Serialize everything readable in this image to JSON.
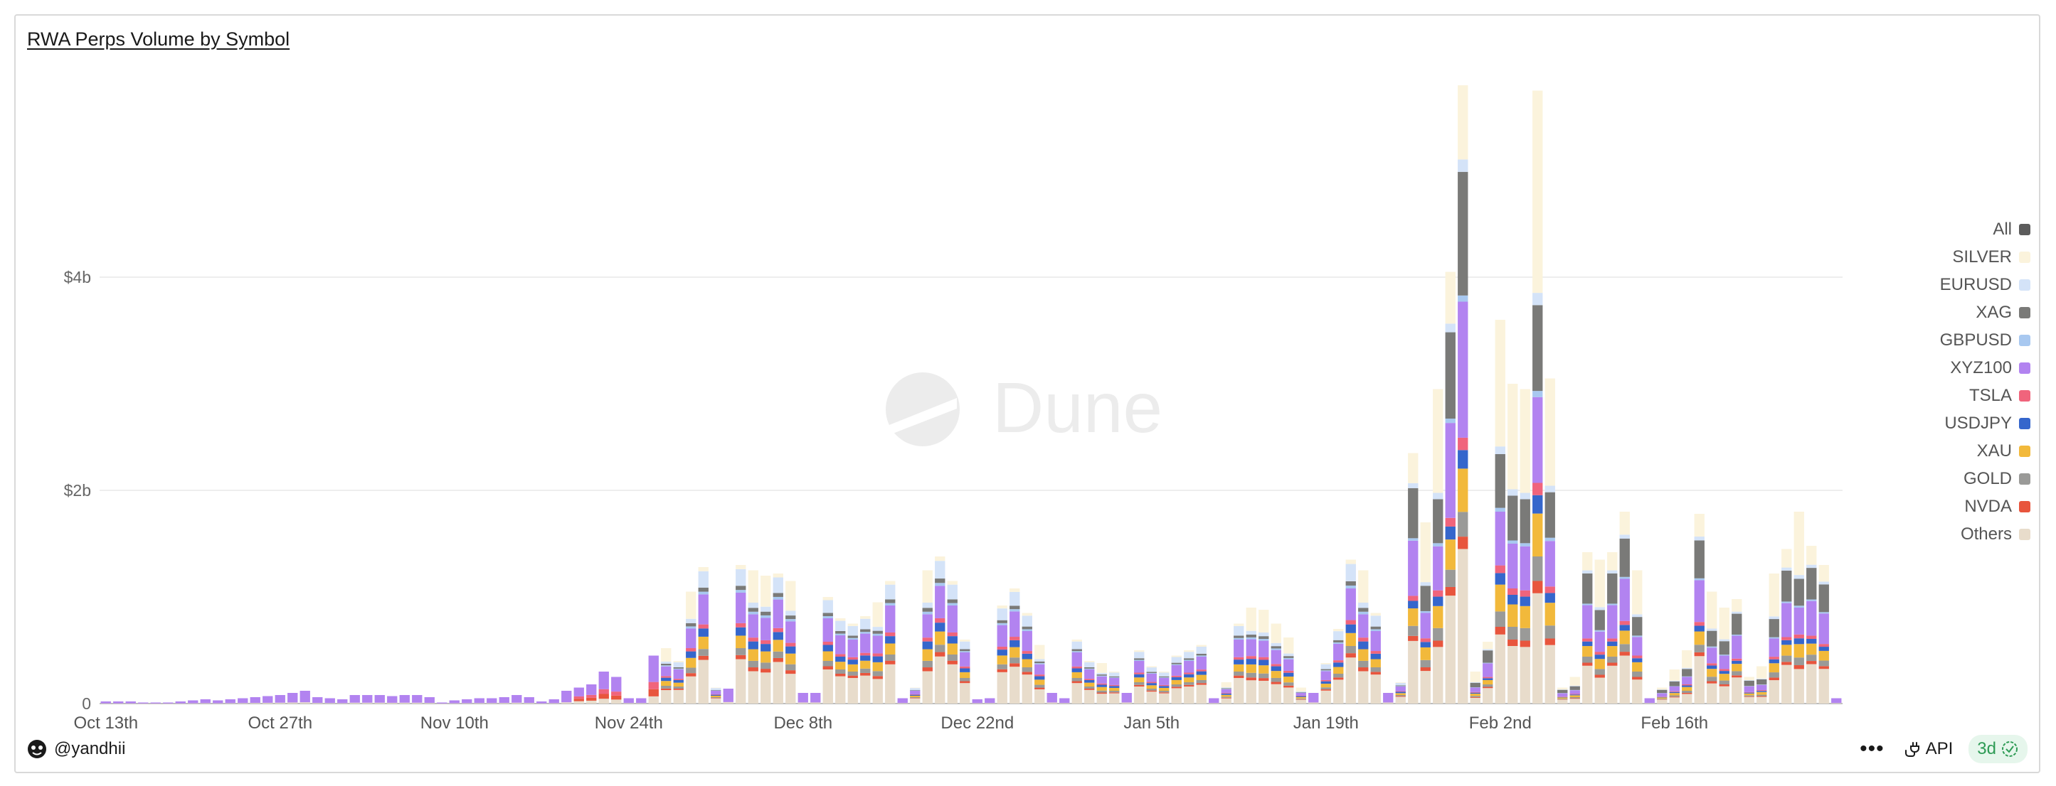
{
  "title": "RWA Perps Volume by Symbol",
  "watermark": "Dune",
  "footer": {
    "author": "@yandhii",
    "api_label": "API",
    "refresh_label": "3d"
  },
  "chart_data": {
    "type": "bar",
    "stacked": true,
    "title": "RWA Perps Volume by Symbol",
    "y_unit": "billion USD",
    "ylim": [
      0,
      6
    ],
    "y_ticks": [
      {
        "value": 0,
        "label": "0"
      },
      {
        "value": 2,
        "label": "$2b"
      },
      {
        "value": 4,
        "label": "$4b"
      }
    ],
    "x_ticks": [
      "Oct 13th",
      "Oct 27th",
      "Nov 10th",
      "Nov 24th",
      "Dec 8th",
      "Dec 22nd",
      "Jan 5th",
      "Jan 19th",
      "Feb 2nd",
      "Feb 16th"
    ],
    "grid": true,
    "legend_position": "right",
    "legend": [
      {
        "name": "All",
        "color": "#5c5c5c"
      },
      {
        "name": "SILVER",
        "color": "#fbf3dc"
      },
      {
        "name": "EURUSD",
        "color": "#d4e3f8"
      },
      {
        "name": "XAG",
        "color": "#7a7a78"
      },
      {
        "name": "GBPUSD",
        "color": "#a8c8f0"
      },
      {
        "name": "XYZ100",
        "color": "#b283f0"
      },
      {
        "name": "TSLA",
        "color": "#f0647c"
      },
      {
        "name": "USDJPY",
        "color": "#3566cc"
      },
      {
        "name": "XAU",
        "color": "#f2b93b"
      },
      {
        "name": "GOLD",
        "color": "#9a9a98"
      },
      {
        "name": "NVDA",
        "color": "#e8553d"
      },
      {
        "name": "Others",
        "color": "#e8dccb"
      }
    ],
    "stack_order": [
      "Others",
      "NVDA",
      "GOLD",
      "XAU",
      "USDJPY",
      "TSLA",
      "XYZ100",
      "GBPUSD",
      "XAG",
      "EURUSD",
      "SILVER"
    ],
    "x_start": "2025-10-13",
    "totals_daily_billions": [
      0.02,
      0.02,
      0.02,
      0.01,
      0.01,
      0.01,
      0.02,
      0.03,
      0.04,
      0.03,
      0.04,
      0.05,
      0.06,
      0.07,
      0.08,
      0.1,
      0.12,
      0.06,
      0.05,
      0.04,
      0.08,
      0.08,
      0.08,
      0.07,
      0.08,
      0.08,
      0.06,
      0.01,
      0.03,
      0.04,
      0.05,
      0.05,
      0.06,
      0.08,
      0.06,
      0.02,
      0.04,
      0.12,
      0.15,
      0.18,
      0.3,
      0.25,
      0.05,
      0.05,
      0.45,
      0.52,
      0.4,
      1.05,
      1.28,
      0.15,
      0.14,
      1.3,
      1.25,
      1.2,
      1.22,
      1.15,
      0.1,
      0.1,
      1.0,
      0.8,
      0.75,
      0.82,
      0.95,
      1.15,
      0.05,
      0.15,
      1.25,
      1.38,
      1.15,
      0.6,
      0.04,
      0.05,
      0.92,
      1.08,
      0.85,
      0.55,
      0.1,
      0.05,
      0.6,
      0.4,
      0.38,
      0.3,
      0.1,
      0.5,
      0.35,
      0.3,
      0.45,
      0.5,
      0.55,
      0.05,
      0.2,
      0.75,
      0.9,
      0.88,
      0.75,
      0.62,
      0.15,
      0.1,
      0.38,
      0.7,
      1.35,
      1.25,
      0.85,
      0.1,
      0.2,
      2.35,
      1.7,
      2.95,
      4.05,
      5.8,
      0.3,
      0.58,
      3.6,
      3.0,
      2.95,
      5.75,
      3.05,
      0.15,
      0.25,
      1.42,
      1.35,
      1.42,
      1.8,
      1.25,
      0.05,
      0.15,
      0.32,
      0.5,
      1.78,
      1.05,
      0.9,
      0.98,
      0.25,
      0.35,
      1.22,
      1.45,
      1.8,
      1.48,
      1.3,
      0.05
    ]
  }
}
